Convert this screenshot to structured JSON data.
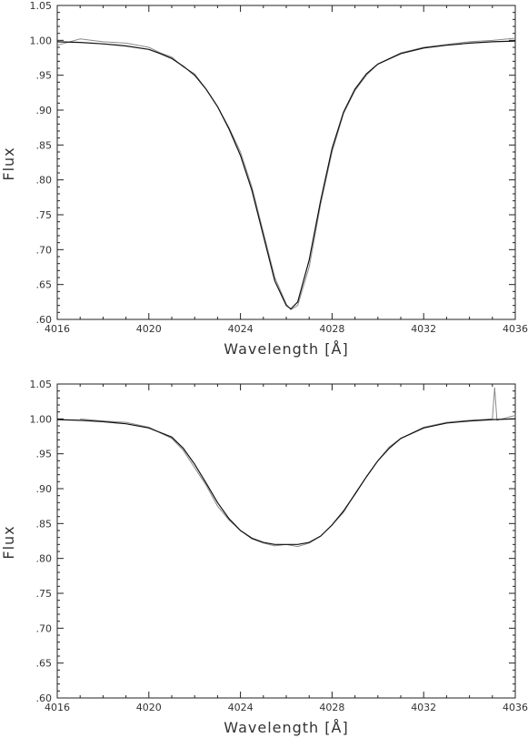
{
  "chart_data": [
    {
      "type": "line",
      "xlabel": "Wavelength [Å]",
      "ylabel": "Flux",
      "xlim": [
        4016,
        4036
      ],
      "ylim": [
        0.6,
        1.05
      ],
      "xticks": [
        4016,
        4020,
        4024,
        4028,
        4032,
        4036
      ],
      "xtick_labels": [
        "4016",
        "4020",
        "4024",
        "4028",
        "4032",
        "4036"
      ],
      "yticks": [
        0.6,
        0.65,
        0.7,
        0.75,
        0.8,
        0.85,
        0.9,
        0.95,
        1.0,
        1.05
      ],
      "ytick_labels": [
        ".60",
        ".65",
        ".70",
        ".75",
        ".80",
        ".85",
        ".90",
        ".95",
        "1.00",
        "1.05"
      ],
      "grid": false,
      "series": [
        {
          "role": "observed",
          "color": "#8a8a8a",
          "x": [
            4016.0,
            4017.0,
            4018.0,
            4019.0,
            4020.0,
            4020.5,
            4021.0,
            4021.5,
            4022.0,
            4022.5,
            4023.0,
            4023.5,
            4024.0,
            4024.5,
            4025.0,
            4025.5,
            4026.0,
            4026.2,
            4026.5,
            4027.0,
            4027.5,
            4028.0,
            4028.5,
            4029.0,
            4029.5,
            4030.0,
            4031.0,
            4032.0,
            4033.0,
            4034.0,
            4035.0,
            4036.0
          ],
          "y": [
            0.993,
            1.002,
            0.998,
            0.996,
            0.99,
            0.982,
            0.976,
            0.962,
            0.952,
            0.93,
            0.905,
            0.875,
            0.84,
            0.79,
            0.725,
            0.66,
            0.622,
            0.614,
            0.62,
            0.675,
            0.765,
            0.84,
            0.895,
            0.928,
            0.95,
            0.966,
            0.982,
            0.99,
            0.994,
            0.998,
            1.0,
            1.003
          ]
        },
        {
          "role": "model",
          "color": "#111111",
          "x": [
            4016.0,
            4017.0,
            4018.0,
            4019.0,
            4020.0,
            4020.5,
            4021.0,
            4021.5,
            4022.0,
            4022.5,
            4023.0,
            4023.5,
            4024.0,
            4024.5,
            4025.0,
            4025.5,
            4026.0,
            4026.2,
            4026.5,
            4027.0,
            4027.5,
            4028.0,
            4028.5,
            4029.0,
            4029.5,
            4030.0,
            4031.0,
            4032.0,
            4033.0,
            4034.0,
            4035.0,
            4036.0
          ],
          "y": [
            0.998,
            0.997,
            0.995,
            0.992,
            0.987,
            0.981,
            0.974,
            0.963,
            0.95,
            0.93,
            0.905,
            0.873,
            0.835,
            0.785,
            0.72,
            0.655,
            0.62,
            0.615,
            0.625,
            0.685,
            0.77,
            0.845,
            0.897,
            0.93,
            0.952,
            0.966,
            0.981,
            0.989,
            0.993,
            0.996,
            0.998,
            0.999
          ]
        }
      ]
    },
    {
      "type": "line",
      "xlabel": "Wavelength [Å]",
      "ylabel": "Flux",
      "xlim": [
        4016,
        4036
      ],
      "ylim": [
        0.6,
        1.05
      ],
      "xticks": [
        4016,
        4020,
        4024,
        4028,
        4032,
        4036
      ],
      "xtick_labels": [
        "4016",
        "4020",
        "4024",
        "4028",
        "4032",
        "4036"
      ],
      "yticks": [
        0.6,
        0.65,
        0.7,
        0.75,
        0.8,
        0.85,
        0.9,
        0.95,
        1.0,
        1.05
      ],
      "ytick_labels": [
        ".60",
        ".65",
        ".70",
        ".75",
        ".80",
        ".85",
        ".90",
        ".95",
        "1.00",
        "1.05"
      ],
      "grid": false,
      "series": [
        {
          "role": "observed",
          "color": "#8a8a8a",
          "x": [
            4017.0,
            4018.0,
            4019.0,
            4020.0,
            4021.0,
            4021.5,
            4022.0,
            4022.5,
            4023.0,
            4023.5,
            4024.0,
            4024.5,
            4025.0,
            4025.5,
            4026.0,
            4026.5,
            4027.0,
            4027.5,
            4028.0,
            4028.5,
            4029.0,
            4029.5,
            4030.0,
            4030.5,
            4031.0,
            4032.0,
            4033.0,
            4034.0,
            4035.0,
            4035.1,
            4035.2,
            4036.0
          ],
          "y": [
            1.0,
            0.997,
            0.995,
            0.988,
            0.972,
            0.955,
            0.93,
            0.905,
            0.875,
            0.855,
            0.84,
            0.828,
            0.822,
            0.818,
            0.82,
            0.817,
            0.822,
            0.832,
            0.848,
            0.866,
            0.893,
            0.917,
            0.94,
            0.96,
            0.972,
            0.988,
            0.995,
            0.998,
            1.0,
            1.045,
            0.998,
            1.005
          ]
        },
        {
          "role": "model",
          "color": "#111111",
          "x": [
            4016.0,
            4017.0,
            4018.0,
            4019.0,
            4020.0,
            4021.0,
            4021.5,
            4022.0,
            4022.5,
            4023.0,
            4023.5,
            4024.0,
            4024.5,
            4025.0,
            4025.5,
            4026.0,
            4026.5,
            4027.0,
            4027.5,
            4028.0,
            4028.5,
            4029.0,
            4029.5,
            4030.0,
            4030.5,
            4031.0,
            4032.0,
            4033.0,
            4034.0,
            4035.0,
            4036.0
          ],
          "y": [
            0.999,
            0.998,
            0.996,
            0.993,
            0.987,
            0.974,
            0.958,
            0.935,
            0.908,
            0.88,
            0.857,
            0.84,
            0.829,
            0.823,
            0.82,
            0.82,
            0.82,
            0.823,
            0.832,
            0.848,
            0.868,
            0.892,
            0.917,
            0.94,
            0.958,
            0.972,
            0.987,
            0.994,
            0.997,
            0.999,
            1.0
          ]
        }
      ]
    }
  ]
}
